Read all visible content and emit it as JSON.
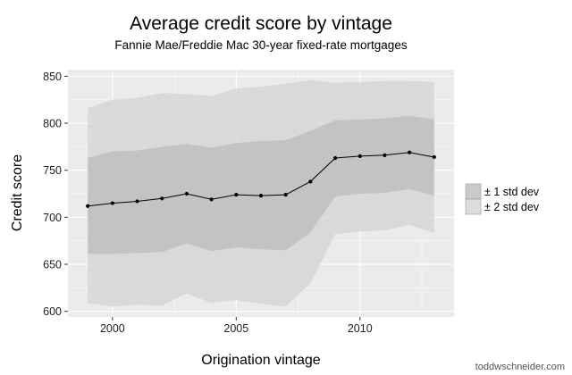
{
  "chart_data": {
    "type": "line",
    "title": "Average credit score by vintage",
    "subtitle": "Fannie Mae/Freddie Mac 30-year fixed-rate mortgages",
    "xlabel": "Origination vintage",
    "ylabel": "Credit score",
    "xlim": [
      1998.2,
      2013.8
    ],
    "ylim": [
      594,
      857
    ],
    "x_ticks": [
      2000,
      2005,
      2010
    ],
    "y_ticks": [
      600,
      650,
      700,
      750,
      800,
      850
    ],
    "grid": true,
    "legend_position": "right",
    "x": [
      1999,
      2000,
      2001,
      2002,
      2003,
      2004,
      2005,
      2006,
      2007,
      2008,
      2009,
      2010,
      2011,
      2012,
      2013
    ],
    "series": [
      {
        "values": [
          712,
          715,
          717,
          720,
          725,
          719,
          724,
          723,
          724,
          738,
          763,
          765,
          766,
          769,
          764
        ]
      }
    ],
    "bands": [
      {
        "name": "± 2 std dev",
        "lower": [
          609,
          605,
          607,
          606,
          619,
          609,
          612,
          608,
          605,
          630,
          682,
          685,
          686,
          692,
          683
        ],
        "upper": [
          816,
          825,
          827,
          832,
          831,
          829,
          837,
          839,
          842,
          846,
          843,
          844,
          845,
          845,
          844
        ]
      },
      {
        "name": "± 1 std dev",
        "lower": [
          661,
          661,
          662,
          663,
          672,
          664,
          668,
          666,
          665,
          684,
          722,
          725,
          726,
          730,
          723
        ],
        "upper": [
          763,
          770,
          771,
          775,
          778,
          774,
          779,
          781,
          782,
          792,
          803,
          804,
          805,
          808,
          804
        ]
      }
    ]
  },
  "colors": {
    "panel_bg": "#ebebeb",
    "grid": "#ffffff",
    "band_2sd": "#d4d4d4",
    "band_1sd": "#bdbdbd",
    "line": "#000000"
  },
  "credit": "toddwschneider.com"
}
